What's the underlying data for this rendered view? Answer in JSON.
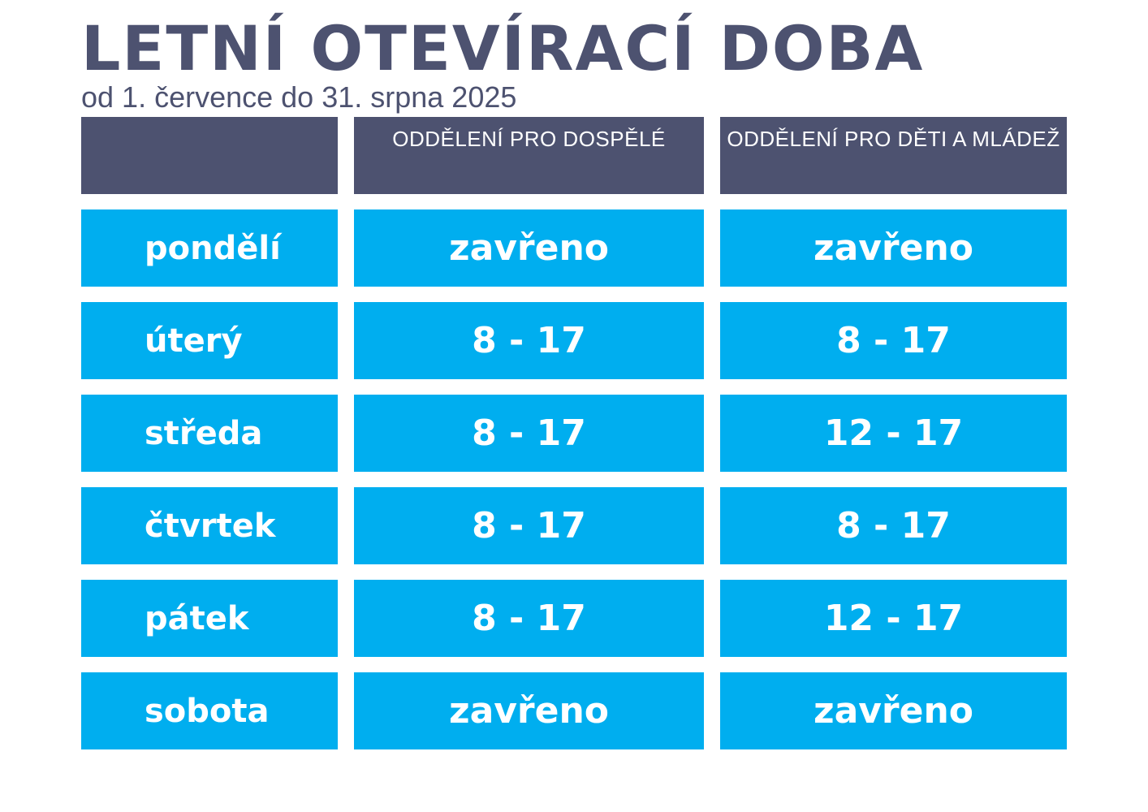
{
  "title": "LETNÍ OTEVÍRACÍ DOBA",
  "subtitle": "od 1. července do 31. srpna 2025",
  "table": {
    "headers": [
      "",
      "ODDĚLENÍ PRO DOSPĚLÉ",
      "ODDĚLENÍ PRO DĚTI A MLÁDEŽ"
    ],
    "rows": [
      {
        "day": "pondělí",
        "adults": "zavřeno",
        "kids": "zavřeno"
      },
      {
        "day": "úterý",
        "adults": "8 - 17",
        "kids": "8 - 17"
      },
      {
        "day": "středa",
        "adults": "8 - 17",
        "kids": "12 - 17"
      },
      {
        "day": "čtvrtek",
        "adults": "8 - 17",
        "kids": "8 - 17"
      },
      {
        "day": "pátek",
        "adults": "8 - 17",
        "kids": "12 - 17"
      },
      {
        "day": "sobota",
        "adults": "zavřeno",
        "kids": "zavřeno"
      }
    ]
  },
  "colors": {
    "header_bg": "#4d5270",
    "cell_bg": "#00aeef",
    "text_dark": "#4d5270",
    "text_light": "#ffffff"
  }
}
